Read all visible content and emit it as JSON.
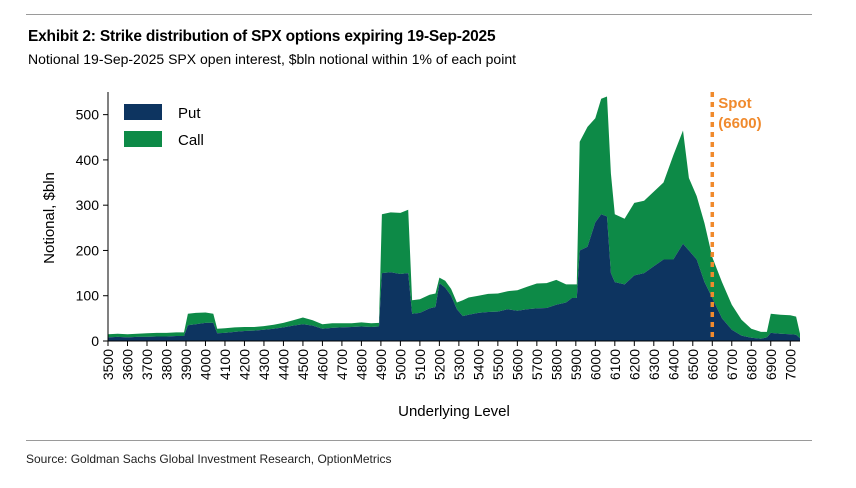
{
  "header": {
    "title": "Exhibit 2: Strike distribution of SPX options expiring 19-Sep-2025",
    "subtitle": "Notional 19-Sep-2025 SPX open interest, $bln notional within 1% of each point"
  },
  "footer": {
    "source": "Source: Goldman Sachs Global Investment Research, OptionMetrics"
  },
  "colors": {
    "put": "#0d3460",
    "call": "#0d8a47",
    "spot": "#f08a2d"
  },
  "chart_data": {
    "type": "area",
    "stacked": true,
    "xlabel": "Underlying Level",
    "ylabel": "Notional, $bln",
    "xlim": [
      3500,
      7050
    ],
    "ylim": [
      0,
      550
    ],
    "y_ticks": [
      0,
      100,
      200,
      300,
      400,
      500
    ],
    "x_ticks": [
      3500,
      3600,
      3700,
      3800,
      3900,
      4000,
      4100,
      4200,
      4300,
      4400,
      4500,
      4600,
      4700,
      4800,
      4900,
      5000,
      5100,
      5200,
      5300,
      5400,
      5500,
      5600,
      5700,
      5800,
      5900,
      6000,
      6100,
      6200,
      6300,
      6400,
      6500,
      6600,
      6700,
      6800,
      6900,
      7000
    ],
    "legend_position": "top-left",
    "grid": false,
    "annotation": {
      "label_line1": "Spot",
      "label_line2": "(6600)",
      "x": 6600
    },
    "series": [
      {
        "name": "Put",
        "points": [
          [
            3500,
            8
          ],
          [
            3550,
            9
          ],
          [
            3600,
            8
          ],
          [
            3650,
            9
          ],
          [
            3700,
            9
          ],
          [
            3750,
            10
          ],
          [
            3800,
            10
          ],
          [
            3850,
            11
          ],
          [
            3890,
            11
          ],
          [
            3910,
            35
          ],
          [
            3950,
            37
          ],
          [
            4000,
            40
          ],
          [
            4040,
            40
          ],
          [
            4060,
            17
          ],
          [
            4100,
            18
          ],
          [
            4150,
            20
          ],
          [
            4200,
            22
          ],
          [
            4250,
            23
          ],
          [
            4300,
            25
          ],
          [
            4350,
            27
          ],
          [
            4400,
            30
          ],
          [
            4450,
            34
          ],
          [
            4500,
            37
          ],
          [
            4550,
            34
          ],
          [
            4600,
            27
          ],
          [
            4650,
            29
          ],
          [
            4700,
            30
          ],
          [
            4750,
            31
          ],
          [
            4800,
            32
          ],
          [
            4850,
            31
          ],
          [
            4890,
            32
          ],
          [
            4905,
            150
          ],
          [
            4950,
            152
          ],
          [
            5000,
            148
          ],
          [
            5040,
            150
          ],
          [
            5060,
            60
          ],
          [
            5100,
            62
          ],
          [
            5150,
            72
          ],
          [
            5180,
            75
          ],
          [
            5200,
            128
          ],
          [
            5230,
            118
          ],
          [
            5260,
            100
          ],
          [
            5290,
            70
          ],
          [
            5320,
            55
          ],
          [
            5350,
            58
          ],
          [
            5400,
            62
          ],
          [
            5450,
            64
          ],
          [
            5500,
            65
          ],
          [
            5550,
            70
          ],
          [
            5600,
            67
          ],
          [
            5650,
            70
          ],
          [
            5700,
            72
          ],
          [
            5750,
            73
          ],
          [
            5800,
            80
          ],
          [
            5850,
            85
          ],
          [
            5880,
            95
          ],
          [
            5905,
            95
          ],
          [
            5920,
            200
          ],
          [
            5960,
            208
          ],
          [
            6000,
            262
          ],
          [
            6030,
            280
          ],
          [
            6060,
            275
          ],
          [
            6080,
            150
          ],
          [
            6100,
            130
          ],
          [
            6150,
            125
          ],
          [
            6200,
            145
          ],
          [
            6250,
            150
          ],
          [
            6300,
            165
          ],
          [
            6350,
            180
          ],
          [
            6400,
            180
          ],
          [
            6450,
            215
          ],
          [
            6480,
            200
          ],
          [
            6520,
            180
          ],
          [
            6560,
            130
          ],
          [
            6600,
            95
          ],
          [
            6650,
            50
          ],
          [
            6700,
            25
          ],
          [
            6750,
            12
          ],
          [
            6800,
            7
          ],
          [
            6850,
            5
          ],
          [
            6880,
            8
          ],
          [
            6900,
            18
          ],
          [
            6950,
            16
          ],
          [
            7000,
            15
          ],
          [
            7030,
            14
          ],
          [
            7050,
            6
          ]
        ]
      },
      {
        "name": "Call",
        "points": [
          [
            3500,
            7
          ],
          [
            3550,
            7
          ],
          [
            3600,
            7
          ],
          [
            3650,
            7
          ],
          [
            3700,
            8
          ],
          [
            3750,
            8
          ],
          [
            3800,
            8
          ],
          [
            3850,
            8
          ],
          [
            3890,
            8
          ],
          [
            3910,
            25
          ],
          [
            3950,
            25
          ],
          [
            4000,
            23
          ],
          [
            4040,
            20
          ],
          [
            4060,
            10
          ],
          [
            4100,
            10
          ],
          [
            4150,
            10
          ],
          [
            4200,
            9
          ],
          [
            4250,
            8
          ],
          [
            4300,
            8
          ],
          [
            4350,
            9
          ],
          [
            4400,
            10
          ],
          [
            4450,
            12
          ],
          [
            4500,
            15
          ],
          [
            4550,
            12
          ],
          [
            4600,
            10
          ],
          [
            4650,
            10
          ],
          [
            4700,
            9
          ],
          [
            4750,
            8
          ],
          [
            4800,
            9
          ],
          [
            4850,
            8
          ],
          [
            4890,
            8
          ],
          [
            4905,
            130
          ],
          [
            4950,
            132
          ],
          [
            5000,
            135
          ],
          [
            5040,
            140
          ],
          [
            5060,
            30
          ],
          [
            5100,
            30
          ],
          [
            5150,
            30
          ],
          [
            5180,
            30
          ],
          [
            5200,
            12
          ],
          [
            5230,
            15
          ],
          [
            5260,
            15
          ],
          [
            5290,
            15
          ],
          [
            5320,
            35
          ],
          [
            5350,
            38
          ],
          [
            5400,
            38
          ],
          [
            5450,
            40
          ],
          [
            5500,
            40
          ],
          [
            5550,
            40
          ],
          [
            5600,
            45
          ],
          [
            5650,
            50
          ],
          [
            5700,
            55
          ],
          [
            5750,
            55
          ],
          [
            5800,
            55
          ],
          [
            5850,
            40
          ],
          [
            5880,
            30
          ],
          [
            5905,
            30
          ],
          [
            5920,
            240
          ],
          [
            5960,
            265
          ],
          [
            6000,
            230
          ],
          [
            6030,
            255
          ],
          [
            6060,
            265
          ],
          [
            6080,
            220
          ],
          [
            6100,
            150
          ],
          [
            6150,
            145
          ],
          [
            6200,
            160
          ],
          [
            6250,
            160
          ],
          [
            6300,
            165
          ],
          [
            6350,
            170
          ],
          [
            6400,
            230
          ],
          [
            6450,
            250
          ],
          [
            6480,
            160
          ],
          [
            6520,
            140
          ],
          [
            6560,
            130
          ],
          [
            6600,
            90
          ],
          [
            6650,
            80
          ],
          [
            6700,
            55
          ],
          [
            6750,
            35
          ],
          [
            6800,
            20
          ],
          [
            6850,
            15
          ],
          [
            6880,
            12
          ],
          [
            6900,
            42
          ],
          [
            6950,
            42
          ],
          [
            7000,
            42
          ],
          [
            7030,
            40
          ],
          [
            7050,
            10
          ]
        ]
      }
    ]
  }
}
